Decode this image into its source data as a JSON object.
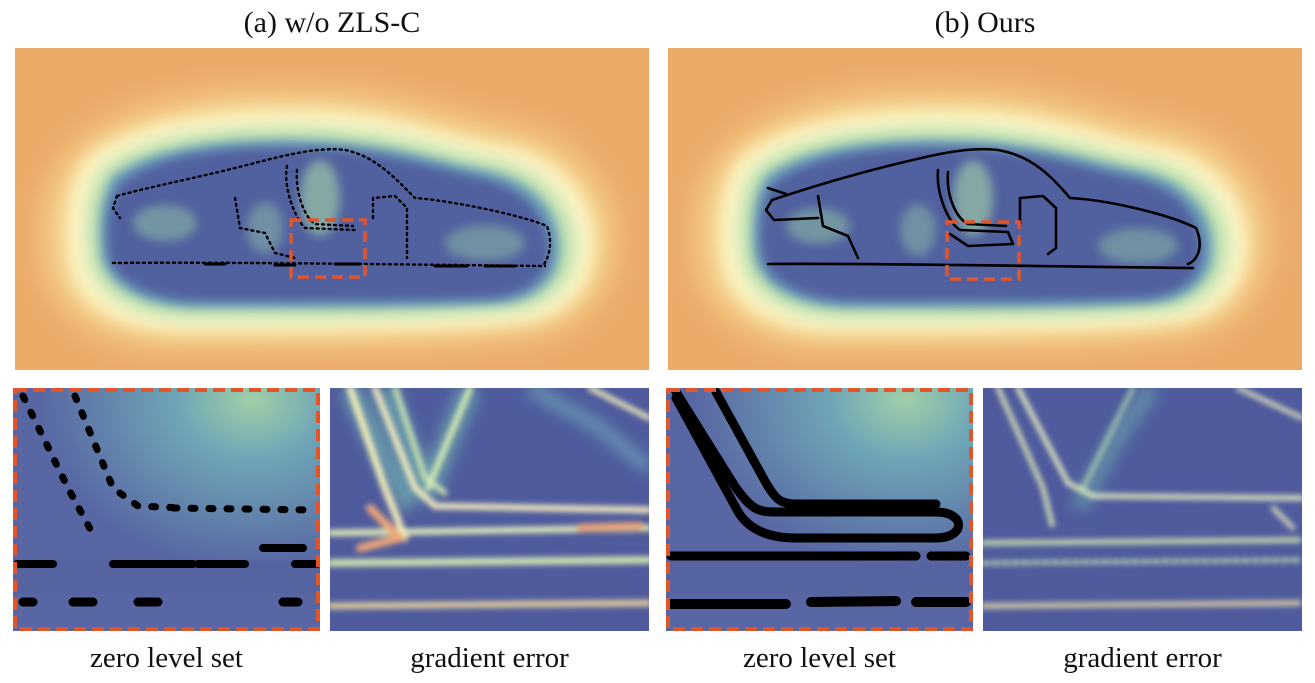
{
  "figure": {
    "left": {
      "title": "(a) w/o ZLS-C"
    },
    "right": {
      "title": "(b) Ours"
    },
    "subcaptions": {
      "left_zero": "zero level set",
      "left_grad": "gradient error",
      "right_zero": "zero level set",
      "right_grad": "gradient error"
    }
  },
  "colors": {
    "background_far": "#ecaa69",
    "zoom_box": "#e2552a",
    "contour": "#000000",
    "field_low": "#4f5b9d",
    "field_high": "#fbf7c8"
  }
}
